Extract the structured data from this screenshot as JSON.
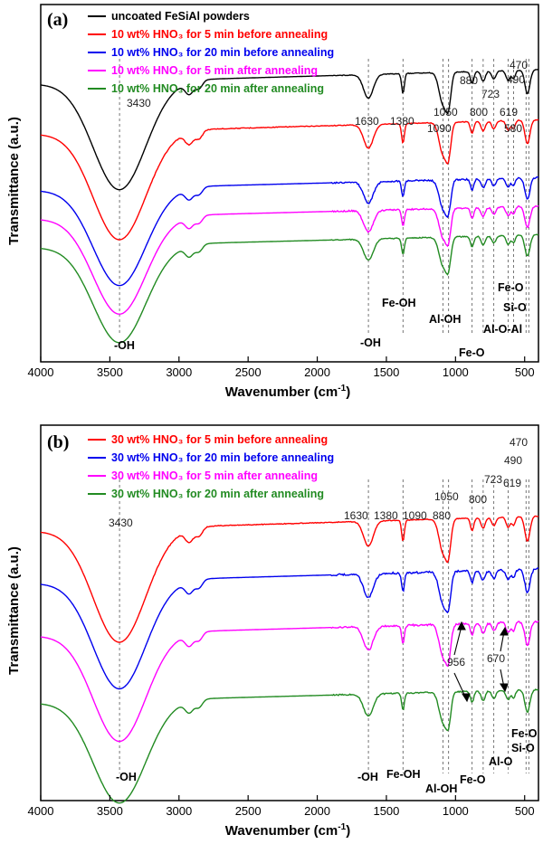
{
  "chart_data": [
    {
      "panel": "(a)",
      "type": "line",
      "xlabel": "Wavenumber (cm",
      "xlabel_sup": "-1",
      "xlabel_end": ")",
      "ylabel": "Transmittance (a.u.)",
      "xlim": [
        4000,
        400
      ],
      "x_ticks": [
        4000,
        3500,
        3000,
        2500,
        2000,
        1500,
        1000,
        500
      ],
      "series": [
        {
          "name": "uncoated FeSiAl powders",
          "color": "#000000",
          "offset": 0.8,
          "wiggle": 0.8,
          "depth": 1.0,
          "cutoff": 700
        },
        {
          "name": "10 wt% HNO₃ for 5 min before annealing",
          "color": "#ff0000",
          "offset": 0.66,
          "wiggle": 0.8,
          "depth": 1.0,
          "cutoff": 2000
        },
        {
          "name": "10 wt% HNO₃ for 20 min before annealing",
          "color": "#0000ee",
          "offset": 0.5,
          "wiggle": 1.6,
          "depth": 0.9,
          "cutoff": 700
        },
        {
          "name": "10 wt% HNO₃ for 5 min after annealing",
          "color": "#ff00ff",
          "offset": 0.42,
          "wiggle": 1.6,
          "depth": 0.9,
          "cutoff": 700
        },
        {
          "name": "10 wt% HNO₃ for 20 min after annealing",
          "color": "#228b22",
          "offset": 0.34,
          "wiggle": 1.0,
          "depth": 0.9,
          "cutoff": 700
        }
      ],
      "peak_markers": [
        "3430",
        "1630",
        "1380",
        "1090",
        "1050",
        "880",
        "800",
        "723",
        "619",
        "580",
        "490",
        "470"
      ],
      "assignments": [
        "-OH",
        "-OH",
        "Fe-OH",
        "Al-OH",
        "Fe-O",
        "Al-O-Al",
        "Si-O",
        "Fe-O"
      ]
    },
    {
      "panel": "(b)",
      "type": "line",
      "xlabel": "Wavenumber (cm",
      "xlabel_sup": "-1",
      "xlabel_end": ")",
      "ylabel": "Transmittance (a.u.)",
      "xlim": [
        4000,
        400
      ],
      "x_ticks": [
        4000,
        3500,
        3000,
        2500,
        2000,
        1500,
        1000,
        500
      ],
      "series": [
        {
          "name": "30 wt% HNO₃ for 5 min before annealing",
          "color": "#ff0000",
          "offset": 0.74,
          "wiggle": 0.8,
          "depth": 1.0,
          "cutoff": 2000
        },
        {
          "name": "30 wt% HNO₃ for 20 min before annealing",
          "color": "#0000ee",
          "offset": 0.6,
          "wiggle": 2.2,
          "depth": 0.95,
          "cutoff": 700
        },
        {
          "name": "30 wt% HNO₃ for 5 min after annealing",
          "color": "#ff00ff",
          "offset": 0.46,
          "wiggle": 2.0,
          "depth": 0.95,
          "cutoff": 700
        },
        {
          "name": "30 wt% HNO₃ for 20 min after annealing",
          "color": "#228b22",
          "offset": 0.28,
          "wiggle": 1.4,
          "depth": 0.9,
          "cutoff": 700
        }
      ],
      "peak_markers": [
        "3430",
        "1630",
        "1380",
        "1090",
        "1050",
        "880",
        "800",
        "723",
        "619",
        "490",
        "470"
      ],
      "extra_annotations": [
        "956",
        "670"
      ],
      "assignments": [
        "-OH",
        "-OH",
        "Fe-OH",
        "Al-OH",
        "Fe-O",
        "Al-O",
        "Si-O",
        "Fe-O"
      ]
    }
  ]
}
